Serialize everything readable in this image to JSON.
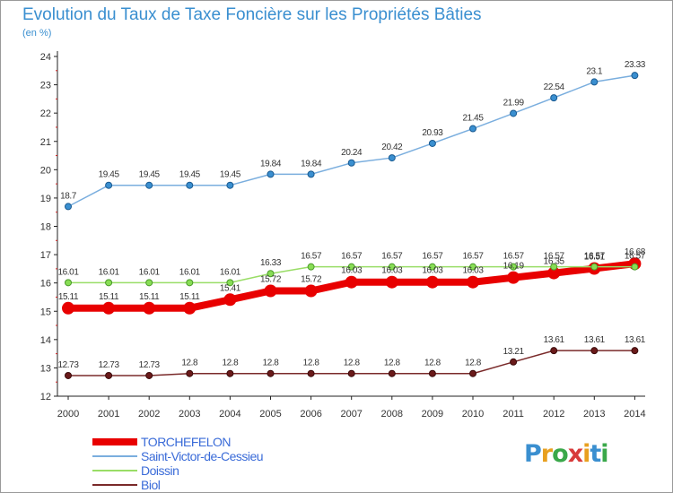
{
  "title": "Evolution du Taux de Taxe Foncière sur les Propriétés Bâties",
  "unit": "(en %)",
  "logo": {
    "letters": [
      "P",
      "r",
      "o",
      "x",
      "i",
      "t",
      "i"
    ],
    "colors": [
      "#3a8fd0",
      "#e8a020",
      "#3aa84a",
      "#d83a3a",
      "#e8a020",
      "#3a8fd0",
      "#3aa84a"
    ]
  },
  "chart_data": {
    "type": "line",
    "title": "Evolution du Taux de Taxe Foncière sur les Propriétés Bâties",
    "ylabel": "(en %)",
    "xlabel": "",
    "x": [
      "2000",
      "2001",
      "2002",
      "2003",
      "2004",
      "2005",
      "2006",
      "2007",
      "2008",
      "2009",
      "2010",
      "2011",
      "2012",
      "2013",
      "2014"
    ],
    "ylim": [
      12,
      24
    ],
    "yticks": [
      12,
      13,
      14,
      15,
      16,
      17,
      18,
      19,
      20,
      21,
      22,
      23,
      24
    ],
    "grid": false,
    "legend": "bottom-left",
    "series": [
      {
        "name": "TORCHEFELON",
        "color": "#e80000",
        "values": [
          15.11,
          15.11,
          15.11,
          15.11,
          15.41,
          15.72,
          15.72,
          16.03,
          16.03,
          16.03,
          16.03,
          16.19,
          16.35,
          16.51,
          16.68
        ],
        "labels": [
          "15.11",
          "15.11",
          "15.11",
          "15.11",
          "15.41",
          "15.72",
          "15.72",
          "16.03",
          "16.03",
          "16.03",
          "16.03",
          "16.19",
          "16.35",
          "16.51",
          "16.68"
        ]
      },
      {
        "name": "Saint-Victor-de-Cessieu",
        "color": "#7aaede",
        "values": [
          18.7,
          19.45,
          19.45,
          19.45,
          19.45,
          19.84,
          19.84,
          20.24,
          20.42,
          20.93,
          21.45,
          21.99,
          22.54,
          23.1,
          23.33
        ],
        "labels": [
          "18.7",
          "19.45",
          "19.45",
          "19.45",
          "19.45",
          "19.84",
          "19.84",
          "20.24",
          "20.42",
          "20.93",
          "21.45",
          "21.99",
          "22.54",
          "23.1",
          "23.33"
        ]
      },
      {
        "name": "Doissin",
        "color": "#99dd66",
        "values": [
          16.01,
          16.01,
          16.01,
          16.01,
          16.01,
          16.33,
          16.57,
          16.57,
          16.57,
          16.57,
          16.57,
          16.57,
          16.57,
          16.57,
          16.57
        ],
        "labels": [
          "16.01",
          "16.01",
          "16.01",
          "16.01",
          "16.01",
          "16.33",
          "16.57",
          "16.57",
          "16.57",
          "16.57",
          "16.57",
          "16.57",
          "16.57",
          "16.57",
          "16.57"
        ]
      },
      {
        "name": "Biol",
        "color": "#7a2a2a",
        "values": [
          12.73,
          12.73,
          12.73,
          12.8,
          12.8,
          12.8,
          12.8,
          12.8,
          12.8,
          12.8,
          12.8,
          13.21,
          13.61,
          13.61,
          13.61
        ],
        "labels": [
          "12.73",
          "12.73",
          "12.73",
          "12.8",
          "12.8",
          "12.8",
          "12.8",
          "12.8",
          "12.8",
          "12.8",
          "12.8",
          "13.21",
          "13.61",
          "13.61",
          "13.61"
        ]
      }
    ]
  }
}
